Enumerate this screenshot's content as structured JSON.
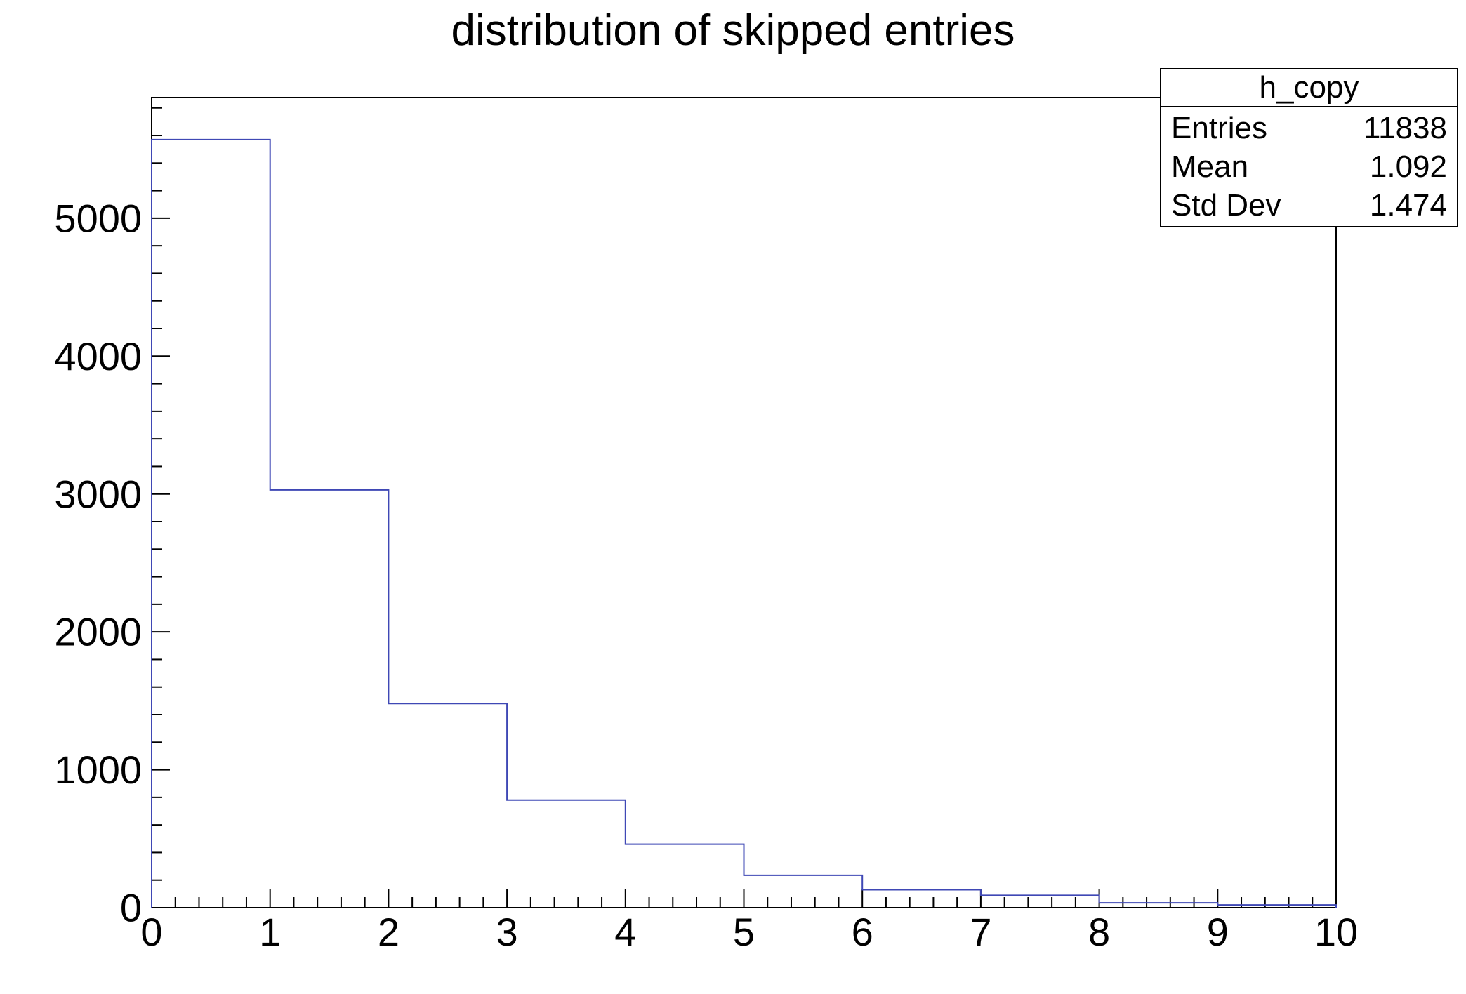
{
  "chart_data": {
    "type": "bar",
    "subtype": "histogram-step-outline",
    "title": "distribution of skipped entries",
    "bin_edges": [
      0,
      1,
      2,
      3,
      4,
      5,
      6,
      7,
      8,
      9,
      10
    ],
    "counts": [
      5570,
      3030,
      1480,
      780,
      460,
      235,
      130,
      90,
      35,
      20
    ],
    "xlim": [
      0,
      10
    ],
    "ylim": [
      0,
      5875
    ],
    "xticks": [
      0,
      1,
      2,
      3,
      4,
      5,
      6,
      7,
      8,
      9,
      10
    ],
    "yticks": [
      0,
      1000,
      2000,
      3000,
      4000,
      5000
    ],
    "x_minor_step": 0.2,
    "y_minor_step": 200,
    "grid": false,
    "legend": "none",
    "xlabel": "",
    "ylabel": "",
    "line_color": "#3f48b5",
    "frame_color": "#000000",
    "background": "#ffffff"
  },
  "stats_box": {
    "title": "h_copy",
    "rows": [
      {
        "label": "Entries",
        "value": "11838"
      },
      {
        "label": "Mean",
        "value": "1.092"
      },
      {
        "label": "Std Dev",
        "value": "1.474"
      }
    ]
  }
}
